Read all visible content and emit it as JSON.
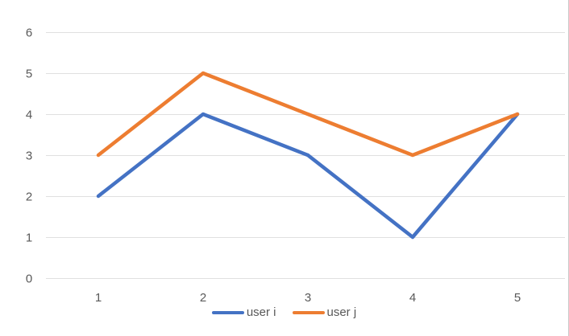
{
  "chart_data": {
    "type": "line",
    "title": "",
    "xlabel": "",
    "ylabel": "",
    "x": [
      1,
      2,
      3,
      4,
      5
    ],
    "series": [
      {
        "name": "user i",
        "values": [
          2,
          4,
          3,
          1,
          4
        ],
        "color": "#4472C4"
      },
      {
        "name": "user j",
        "values": [
          3,
          5,
          4,
          3,
          4
        ],
        "color": "#ED7D31"
      }
    ],
    "ylim": [
      0,
      6
    ],
    "yticks": [
      0,
      1,
      2,
      3,
      4,
      5,
      6
    ],
    "grid": true,
    "legend_position": "bottom"
  },
  "colors": {
    "background": "#FFFFFF",
    "gridline": "#E0E0E0",
    "axis_text": "#595959",
    "window_border": "#C9C9C9",
    "series_blue": "#4472C4",
    "series_orange": "#ED7D31"
  }
}
